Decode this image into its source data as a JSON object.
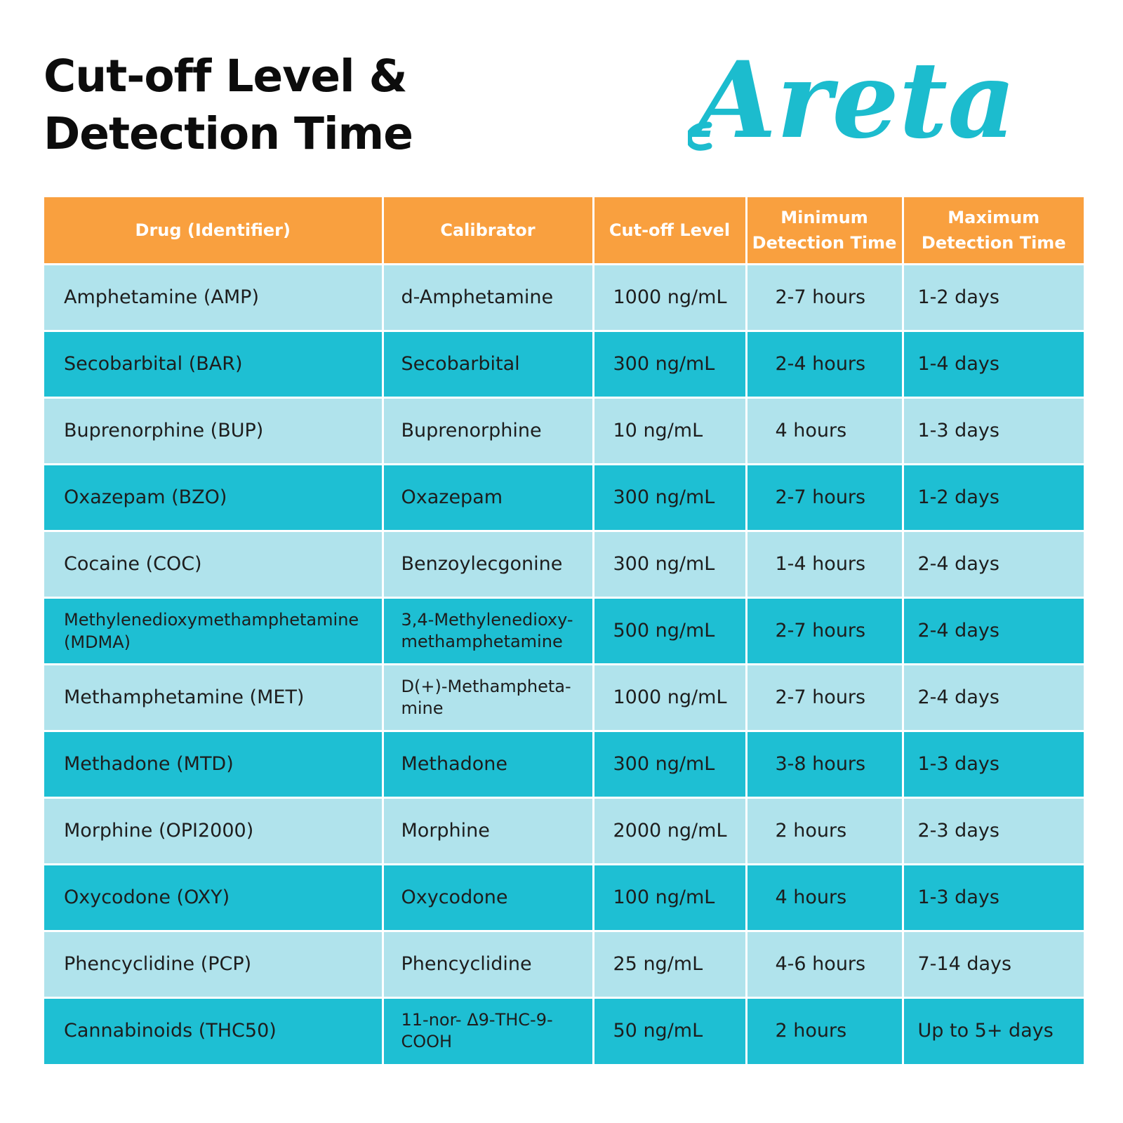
{
  "header": {
    "title_line1": "Cut-off Level &",
    "title_line2": "Detection Time",
    "brand": "Areta"
  },
  "colors": {
    "header_bg": "#F9A03F",
    "row_light": "#B0E3EC",
    "row_dark": "#1EBFD3",
    "brand": "#1CBCCE",
    "title_text": "#0C0C0C"
  },
  "table": {
    "columns": [
      "Drug (Identifier)",
      "Calibrator",
      "Cut-off Level",
      "Minimum Detection Time",
      "Maximum Detection Time"
    ],
    "rows": [
      [
        "Amphetamine (AMP)",
        "d-Amphetamine",
        "1000 ng/mL",
        "2-7 hours",
        "1-2 days"
      ],
      [
        "Secobarbital (BAR)",
        "Secobarbital",
        "300 ng/mL",
        "2-4 hours",
        "1-4 days"
      ],
      [
        "Buprenorphine (BUP)",
        "Buprenorphine",
        "10 ng/mL",
        "4 hours",
        "1-3 days"
      ],
      [
        "Oxazepam (BZO)",
        "Oxazepam",
        "300 ng/mL",
        "2-7 hours",
        "1-2 days"
      ],
      [
        "Cocaine (COC)",
        "Benzoylecgonine",
        "300 ng/mL",
        "1-4 hours",
        "2-4 days"
      ],
      [
        "Methylenedioxymethamphetamine (MDMA)",
        "3,4-Methylenedioxy-methamphetamine",
        "500 ng/mL",
        "2-7 hours",
        "2-4 days"
      ],
      [
        "Methamphetamine (MET)",
        "D(+)-Methampheta-mine",
        "1000 ng/mL",
        "2-7 hours",
        "2-4 days"
      ],
      [
        "Methadone (MTD)",
        "Methadone",
        "300 ng/mL",
        "3-8 hours",
        "1-3 days"
      ],
      [
        "Morphine (OPI2000)",
        "Morphine",
        "2000 ng/mL",
        "2 hours",
        "2-3 days"
      ],
      [
        "Oxycodone (OXY)",
        "Oxycodone",
        "100 ng/mL",
        "4 hours",
        "1-3 days"
      ],
      [
        "Phencyclidine (PCP)",
        "Phencyclidine",
        "25 ng/mL",
        "4-6 hours",
        "7-14 days"
      ],
      [
        "Cannabinoids (THC50)",
        "11-nor- Δ9-THC-9-COOH",
        "50 ng/mL",
        "2 hours",
        "Up to 5+ days"
      ]
    ]
  }
}
